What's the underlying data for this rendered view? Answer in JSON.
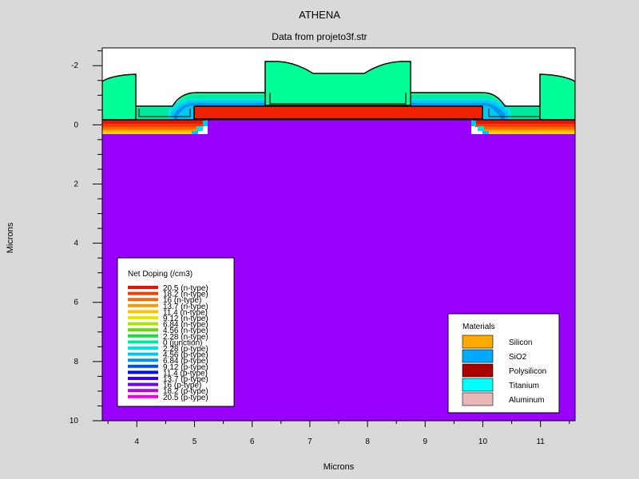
{
  "window": {
    "title": "ATHENA",
    "subtitle": "Data from projeto3f.str"
  },
  "chart_data": {
    "type": "heatmap",
    "title": "ATHENA",
    "subtitle": "Data from projeto3f.str",
    "xlabel": "Microns",
    "ylabel": "Microns",
    "xlim": [
      3.4,
      11.6
    ],
    "ylim": [
      -2.6,
      10.0
    ],
    "y_axis_inverted": true,
    "x_ticks": [
      "4",
      "5",
      "6",
      "7",
      "8",
      "9",
      "10",
      "11"
    ],
    "y_ticks": [
      "-2",
      "0",
      "2",
      "4",
      "6",
      "8",
      "10"
    ],
    "background_color": "#9900ff",
    "net_doping_legend": {
      "title": "Net Doping (/cm3)",
      "entries": [
        {
          "label": "20.5 (n-type)",
          "color": "#ee1100"
        },
        {
          "label": "18.2 (n-type)",
          "color": "#f23f00"
        },
        {
          "label": "16 (n-type)",
          "color": "#f66a00"
        },
        {
          "label": "13.7 (n-type)",
          "color": "#fa9a00"
        },
        {
          "label": "11.4 (n-type)",
          "color": "#f7c400"
        },
        {
          "label": "9.12 (n-type)",
          "color": "#e6e600"
        },
        {
          "label": "6.84 (n-type)",
          "color": "#a8e600"
        },
        {
          "label": "4.56 (n-type)",
          "color": "#5de000"
        },
        {
          "label": "2.28 (n-type)",
          "color": "#18dc40"
        },
        {
          "label": "0 (junction)",
          "color": "#00e8a0"
        },
        {
          "label": "2.28 (p-type)",
          "color": "#00e6d8"
        },
        {
          "label": "4.56 (p-type)",
          "color": "#00c8f0"
        },
        {
          "label": "6.84 (p-type)",
          "color": "#0094f0"
        },
        {
          "label": "9.12 (p-type)",
          "color": "#0050f0"
        },
        {
          "label": "11.4 (p-type)",
          "color": "#0010e0"
        },
        {
          "label": "13.7 (p-type)",
          "color": "#3a00e8"
        },
        {
          "label": "16 (p-type)",
          "color": "#7400f0"
        },
        {
          "label": "18.2 (p-type)",
          "color": "#b800f0"
        },
        {
          "label": "20.5 (p-type)",
          "color": "#ee00e8"
        }
      ]
    },
    "materials_legend": {
      "title": "Materials",
      "entries": [
        {
          "label": "Silicon",
          "color": "#ffaa00"
        },
        {
          "label": "SiO2",
          "color": "#00aaff"
        },
        {
          "label": "Polysilicon",
          "color": "#aa0000"
        },
        {
          "label": "Titanium",
          "color": "#00ffff"
        },
        {
          "label": "Aluminum",
          "color": "#e8b8b8"
        }
      ]
    }
  }
}
